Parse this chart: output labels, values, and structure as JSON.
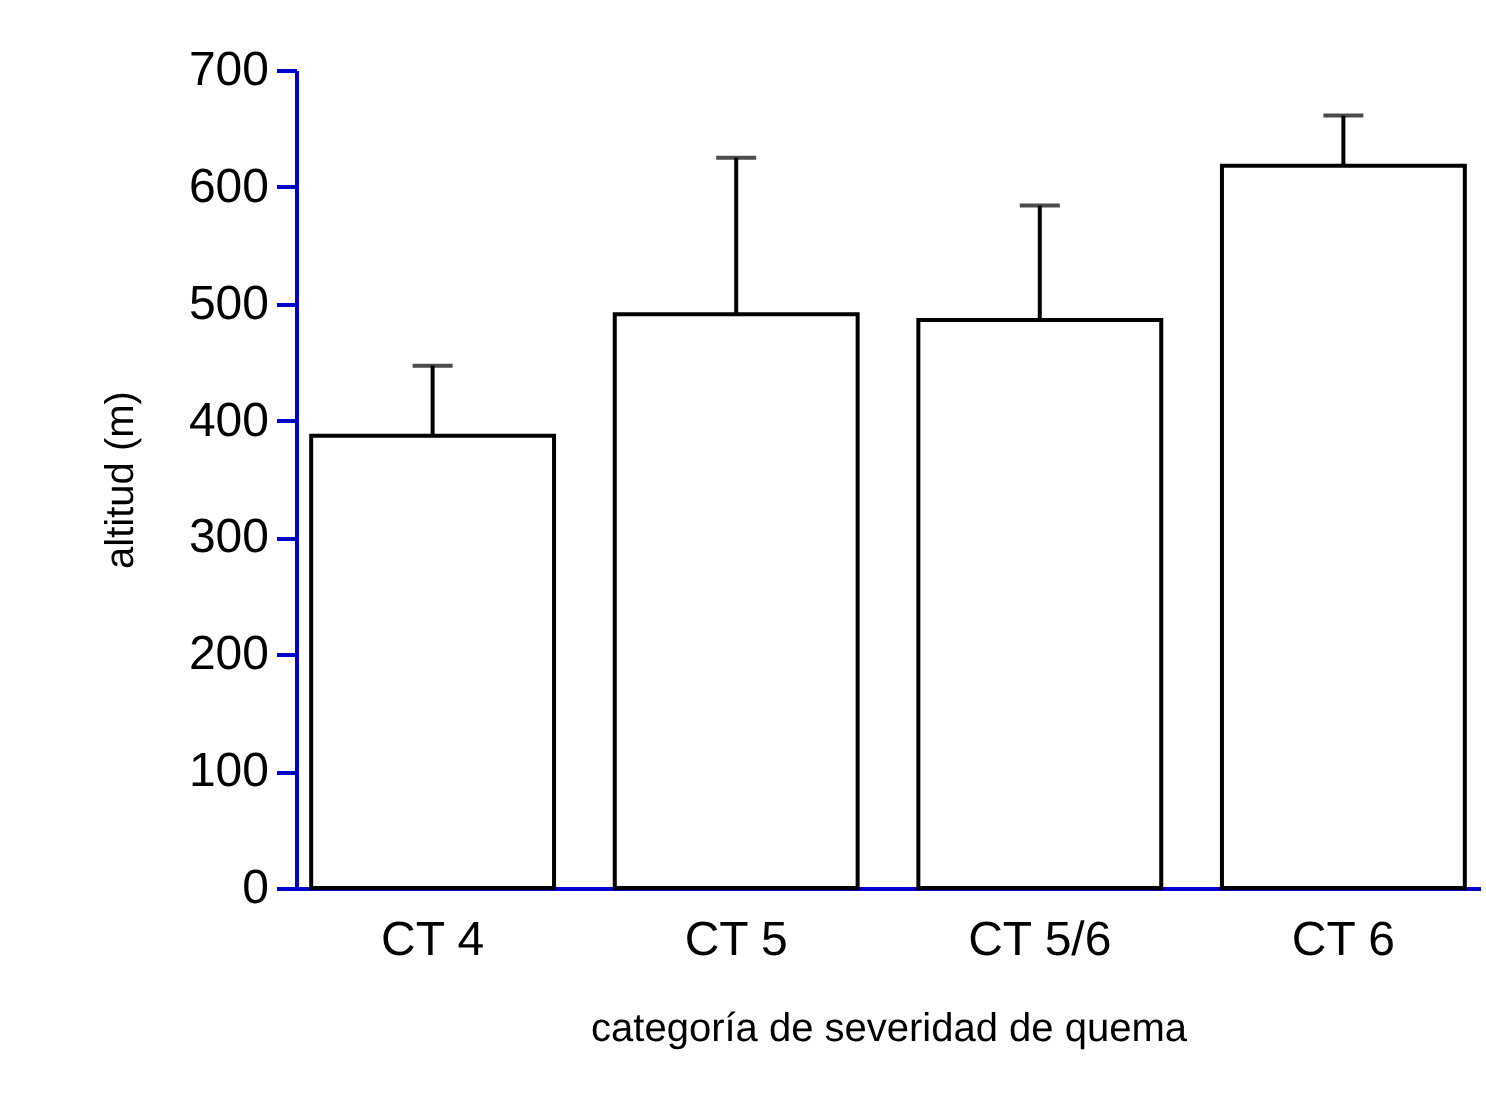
{
  "chart_data": {
    "type": "bar",
    "xlabel": "categoría de severidad de quema",
    "ylabel": "altitud (m)",
    "categories": [
      "CT 4",
      "CT 5",
      "CT 5/6",
      "CT 6"
    ],
    "series": [
      {
        "color": "#ffffff",
        "values": [
          387,
          491,
          486,
          618
        ],
        "errors": [
          [
            387,
            447
          ],
          [
            491,
            625
          ],
          [
            486,
            584
          ],
          [
            618,
            661
          ]
        ]
      }
    ],
    "ylim": [
      0,
      700
    ],
    "yticks": [
      0,
      100,
      200,
      300,
      400,
      500,
      600,
      700
    ],
    "grid": false
  }
}
